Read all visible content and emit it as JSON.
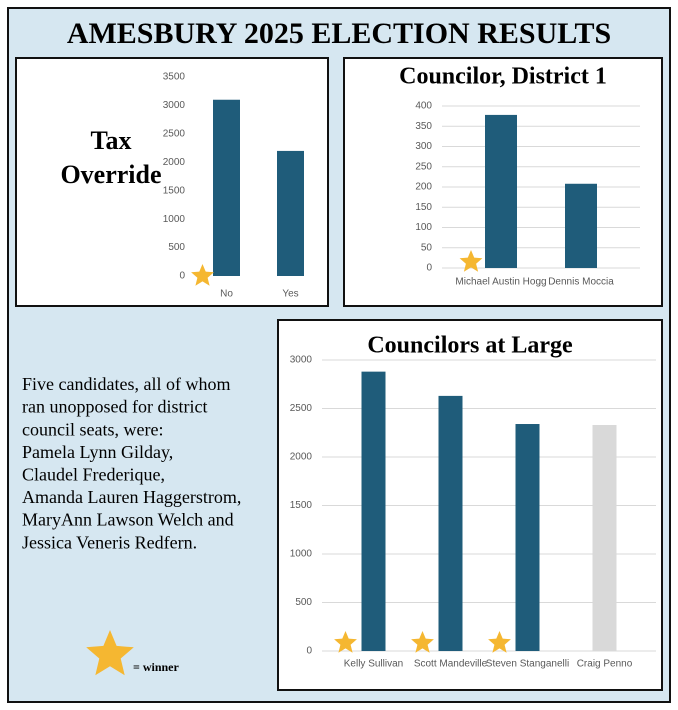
{
  "title": "AMESBURY 2025 ELECTION RESULTS",
  "note_lines": [
    "Five candidates, all of whom",
    "ran unopposed for district",
    "council seats, were:",
    "Pamela Lynn Gilday,",
    "Claudel Frederique,",
    "Amanda Lauren Haggerstrom,",
    "MaryAnn Lawson Welch and",
    "Jessica Veneris Redfern."
  ],
  "legend_label": "= winner",
  "chart_data": [
    {
      "type": "bar",
      "title_lines": [
        "Tax",
        "Override"
      ],
      "categories": [
        "No",
        "Yes"
      ],
      "values": [
        3100,
        2200
      ],
      "colors": [
        "#1f5c7a",
        "#1f5c7a"
      ],
      "winners": [
        true,
        false
      ],
      "ylim": [
        0,
        3500
      ],
      "yticks": [
        0,
        500,
        1000,
        1500,
        2000,
        2500,
        3000,
        3500
      ],
      "grid": false
    },
    {
      "type": "bar",
      "title_lines": [
        "Councilor, District 1"
      ],
      "categories": [
        "Michael Austin Hogg",
        "Dennis Moccia"
      ],
      "values": [
        378,
        208
      ],
      "colors": [
        "#1f5c7a",
        "#1f5c7a"
      ],
      "winners": [
        true,
        false
      ],
      "ylim": [
        0,
        400
      ],
      "yticks": [
        0,
        50,
        100,
        150,
        200,
        250,
        300,
        350,
        400
      ],
      "grid": true
    },
    {
      "type": "bar",
      "title_lines": [
        "Councilors at Large"
      ],
      "categories": [
        "Kelly Sullivan",
        "Scott Mandeville",
        "Steven Stanganelli",
        "Craig Penno"
      ],
      "values": [
        2880,
        2630,
        2340,
        2330
      ],
      "colors": [
        "#1f5c7a",
        "#1f5c7a",
        "#1f5c7a",
        "#d9d9d9"
      ],
      "winners": [
        true,
        true,
        true,
        false
      ],
      "ylim": [
        0,
        3000
      ],
      "yticks": [
        0,
        500,
        1000,
        1500,
        2000,
        2500,
        3000
      ],
      "grid": true
    }
  ]
}
